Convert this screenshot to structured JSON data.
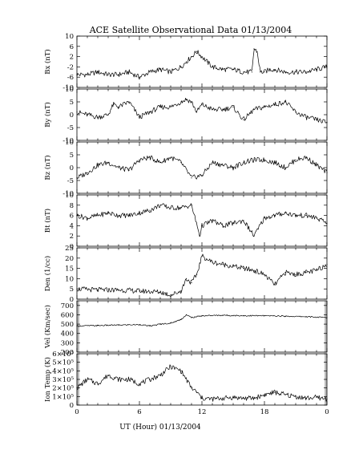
{
  "title": "ACE Satellite Observational Data   01/13/2004",
  "xlabel": "UT (Hour)   01/13/2004",
  "chart_data": {
    "type": "line",
    "title": "ACE Satellite Observational Data   01/13/2004",
    "xlabel": "UT (Hour)   01/13/2004",
    "x_ticks": [
      "0",
      "6",
      "12",
      "18",
      "0"
    ],
    "xlim": [
      0,
      24
    ],
    "panels": [
      {
        "ylabel": "Bx (nT)",
        "ylim": [
          -10,
          10
        ],
        "ytick_labels": [
          "10",
          "6",
          "2",
          "-2",
          "-6",
          "-10"
        ],
        "ytick_values": [
          10,
          6,
          2,
          -2,
          -6,
          -10
        ],
        "x": [
          0,
          1,
          2,
          3,
          4,
          5,
          6,
          7,
          8,
          9,
          10,
          10.5,
          11,
          11.5,
          12,
          12.5,
          13,
          14,
          15,
          16,
          16.8,
          17,
          17.3,
          17.6,
          18,
          18.5,
          19,
          20,
          21,
          22,
          23,
          24
        ],
        "values": [
          -5,
          -5,
          -4,
          -5,
          -5,
          -4,
          -6,
          -4,
          -3,
          -4,
          -2,
          0,
          2,
          4,
          2,
          0,
          -2,
          -3,
          -3,
          -4,
          -4,
          5,
          4,
          -4,
          -4,
          -3,
          -3,
          -4,
          -4,
          -4,
          -3,
          -2
        ]
      },
      {
        "ylabel": "By (nT)",
        "ylim": [
          -10,
          10
        ],
        "ytick_labels": [
          "10",
          "5",
          "0",
          "-5",
          "-10"
        ],
        "ytick_values": [
          10,
          5,
          0,
          -5,
          -10
        ],
        "x": [
          0,
          1,
          2,
          3,
          3.5,
          4,
          5,
          6,
          7,
          8,
          9,
          10,
          10.5,
          11,
          11.5,
          12,
          13,
          14,
          15,
          16,
          17,
          18,
          19,
          20,
          21,
          22,
          23,
          24
        ],
        "values": [
          1,
          0,
          -1,
          0,
          4,
          3,
          5,
          -1,
          1,
          3,
          3,
          5,
          6,
          5,
          1,
          4,
          2,
          2,
          3,
          -2,
          2,
          3,
          4,
          5,
          1,
          -1,
          -2,
          -3
        ]
      },
      {
        "ylabel": "Bz (nT)",
        "ylim": [
          -10,
          10
        ],
        "ytick_labels": [
          "10",
          "5",
          "0",
          "-5",
          "-10"
        ],
        "ytick_values": [
          10,
          5,
          0,
          -5,
          -10
        ],
        "x": [
          0,
          1,
          2,
          3,
          4,
          5,
          6,
          7,
          8,
          9,
          10,
          11,
          12,
          13,
          14,
          15,
          16,
          17,
          18,
          19,
          20,
          21,
          22,
          23,
          24
        ],
        "values": [
          -4,
          -2,
          1,
          2,
          0,
          -1,
          3,
          4,
          2,
          4,
          2,
          -4,
          -3,
          2,
          1,
          0,
          2,
          3,
          3,
          2,
          0,
          3,
          4,
          1,
          -2
        ]
      },
      {
        "ylabel": "Bt (nT)",
        "ylim": [
          0,
          10
        ],
        "ytick_labels": [
          "10",
          "8",
          "6",
          "4",
          "2",
          "0"
        ],
        "ytick_values": [
          10,
          8,
          6,
          4,
          2,
          0
        ],
        "x": [
          0,
          1,
          2,
          3,
          4,
          5,
          6,
          7,
          8,
          9,
          10,
          11,
          11.8,
          12,
          13,
          14,
          15,
          16,
          17,
          18,
          19,
          20,
          21,
          22,
          23,
          24
        ],
        "values": [
          6,
          5.5,
          6,
          6.5,
          6,
          6,
          6.5,
          7,
          8,
          7.5,
          7.5,
          8,
          2,
          4,
          5,
          4,
          4.5,
          5,
          2,
          5.5,
          6,
          6.5,
          6,
          6,
          5.5,
          4.5
        ]
      },
      {
        "ylabel": "Den (1/cc)",
        "ylim": [
          0,
          25
        ],
        "ytick_labels": [
          "25",
          "20",
          "15",
          "10",
          "5",
          "0"
        ],
        "ytick_values": [
          25,
          20,
          15,
          10,
          5,
          0
        ],
        "x": [
          0,
          2,
          4,
          6,
          8,
          9,
          10,
          10.5,
          11,
          11.5,
          12,
          13,
          14,
          15,
          16,
          17,
          18,
          19,
          20,
          21,
          22,
          23,
          24
        ],
        "values": [
          5,
          4.5,
          4.5,
          4,
          3.5,
          2,
          4,
          10,
          8,
          12,
          21,
          18,
          17,
          16,
          15,
          14,
          12,
          7,
          13,
          12,
          13,
          14,
          17
        ]
      },
      {
        "ylabel": "Vel (Km/sec)",
        "ylim": [
          200,
          750
        ],
        "ytick_labels": [
          "700",
          "600",
          "500",
          "400",
          "300",
          "200"
        ],
        "ytick_values": [
          700,
          600,
          500,
          400,
          300,
          200
        ],
        "x": [
          0,
          2,
          4,
          6,
          7,
          8,
          9,
          10,
          10.5,
          11,
          12,
          14,
          16,
          18,
          20,
          22,
          24
        ],
        "values": [
          480,
          485,
          490,
          495,
          480,
          500,
          510,
          550,
          600,
          570,
          590,
          595,
          590,
          590,
          585,
          580,
          570
        ]
      },
      {
        "ylabel": "Ion Temp (K)",
        "ylim": [
          0,
          600000
        ],
        "ytick_labels": [
          "6×10⁵",
          "5×10⁵",
          "4×10⁵",
          "3×10⁵",
          "2×10⁵",
          "1×10⁵",
          "0"
        ],
        "ytick_values": [
          600000,
          500000,
          400000,
          300000,
          200000,
          100000,
          0
        ],
        "x": [
          0,
          1,
          2,
          3,
          4,
          5,
          6,
          7,
          8,
          9,
          10,
          11,
          11.5,
          12,
          13,
          14,
          15,
          16,
          17,
          18,
          19,
          20,
          21,
          22,
          23,
          24
        ],
        "values": [
          200000,
          300000,
          250000,
          350000,
          300000,
          300000,
          250000,
          300000,
          350000,
          450000,
          400000,
          200000,
          150000,
          80000,
          70000,
          80000,
          90000,
          80000,
          80000,
          120000,
          150000,
          120000,
          100000,
          80000,
          90000,
          70000
        ]
      }
    ]
  }
}
